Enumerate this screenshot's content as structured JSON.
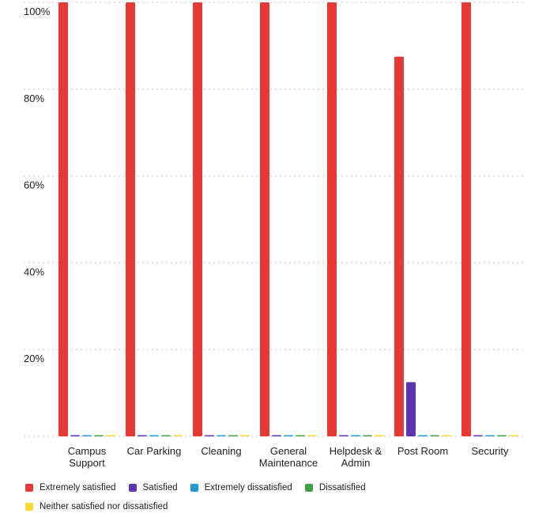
{
  "chart_data": {
    "type": "bar",
    "categories": [
      [
        "Campus",
        "Support"
      ],
      [
        "Car Parking"
      ],
      [
        "Cleaning"
      ],
      [
        "General",
        "Maintenance"
      ],
      [
        "Helpdesk &",
        "Admin"
      ],
      [
        "Post Room"
      ],
      [
        "Security"
      ]
    ],
    "series": [
      {
        "name": "Extremely satisfied",
        "color": "#e53935",
        "values": [
          100,
          100,
          100,
          100,
          100,
          87.5,
          100
        ]
      },
      {
        "name": "Satisfied",
        "color": "#5e35b1",
        "values": [
          0,
          0,
          0,
          0,
          0,
          12.5,
          0
        ]
      },
      {
        "name": "Extremely dissatisfied",
        "color": "#1e9bd7",
        "values": [
          0,
          0,
          0,
          0,
          0,
          0,
          0
        ]
      },
      {
        "name": "Dissatisfied",
        "color": "#43a047",
        "values": [
          0,
          0,
          0,
          0,
          0,
          0,
          0
        ]
      },
      {
        "name": "Neither satisfied nor dissatisfied",
        "color": "#fdd835",
        "values": [
          0,
          0,
          0,
          0,
          0,
          0,
          0
        ]
      }
    ],
    "yticks": [
      "20%",
      "40%",
      "60%",
      "80%",
      "100%"
    ],
    "ylim": [
      0,
      100
    ],
    "grid": true,
    "legend_position": "bottom"
  }
}
